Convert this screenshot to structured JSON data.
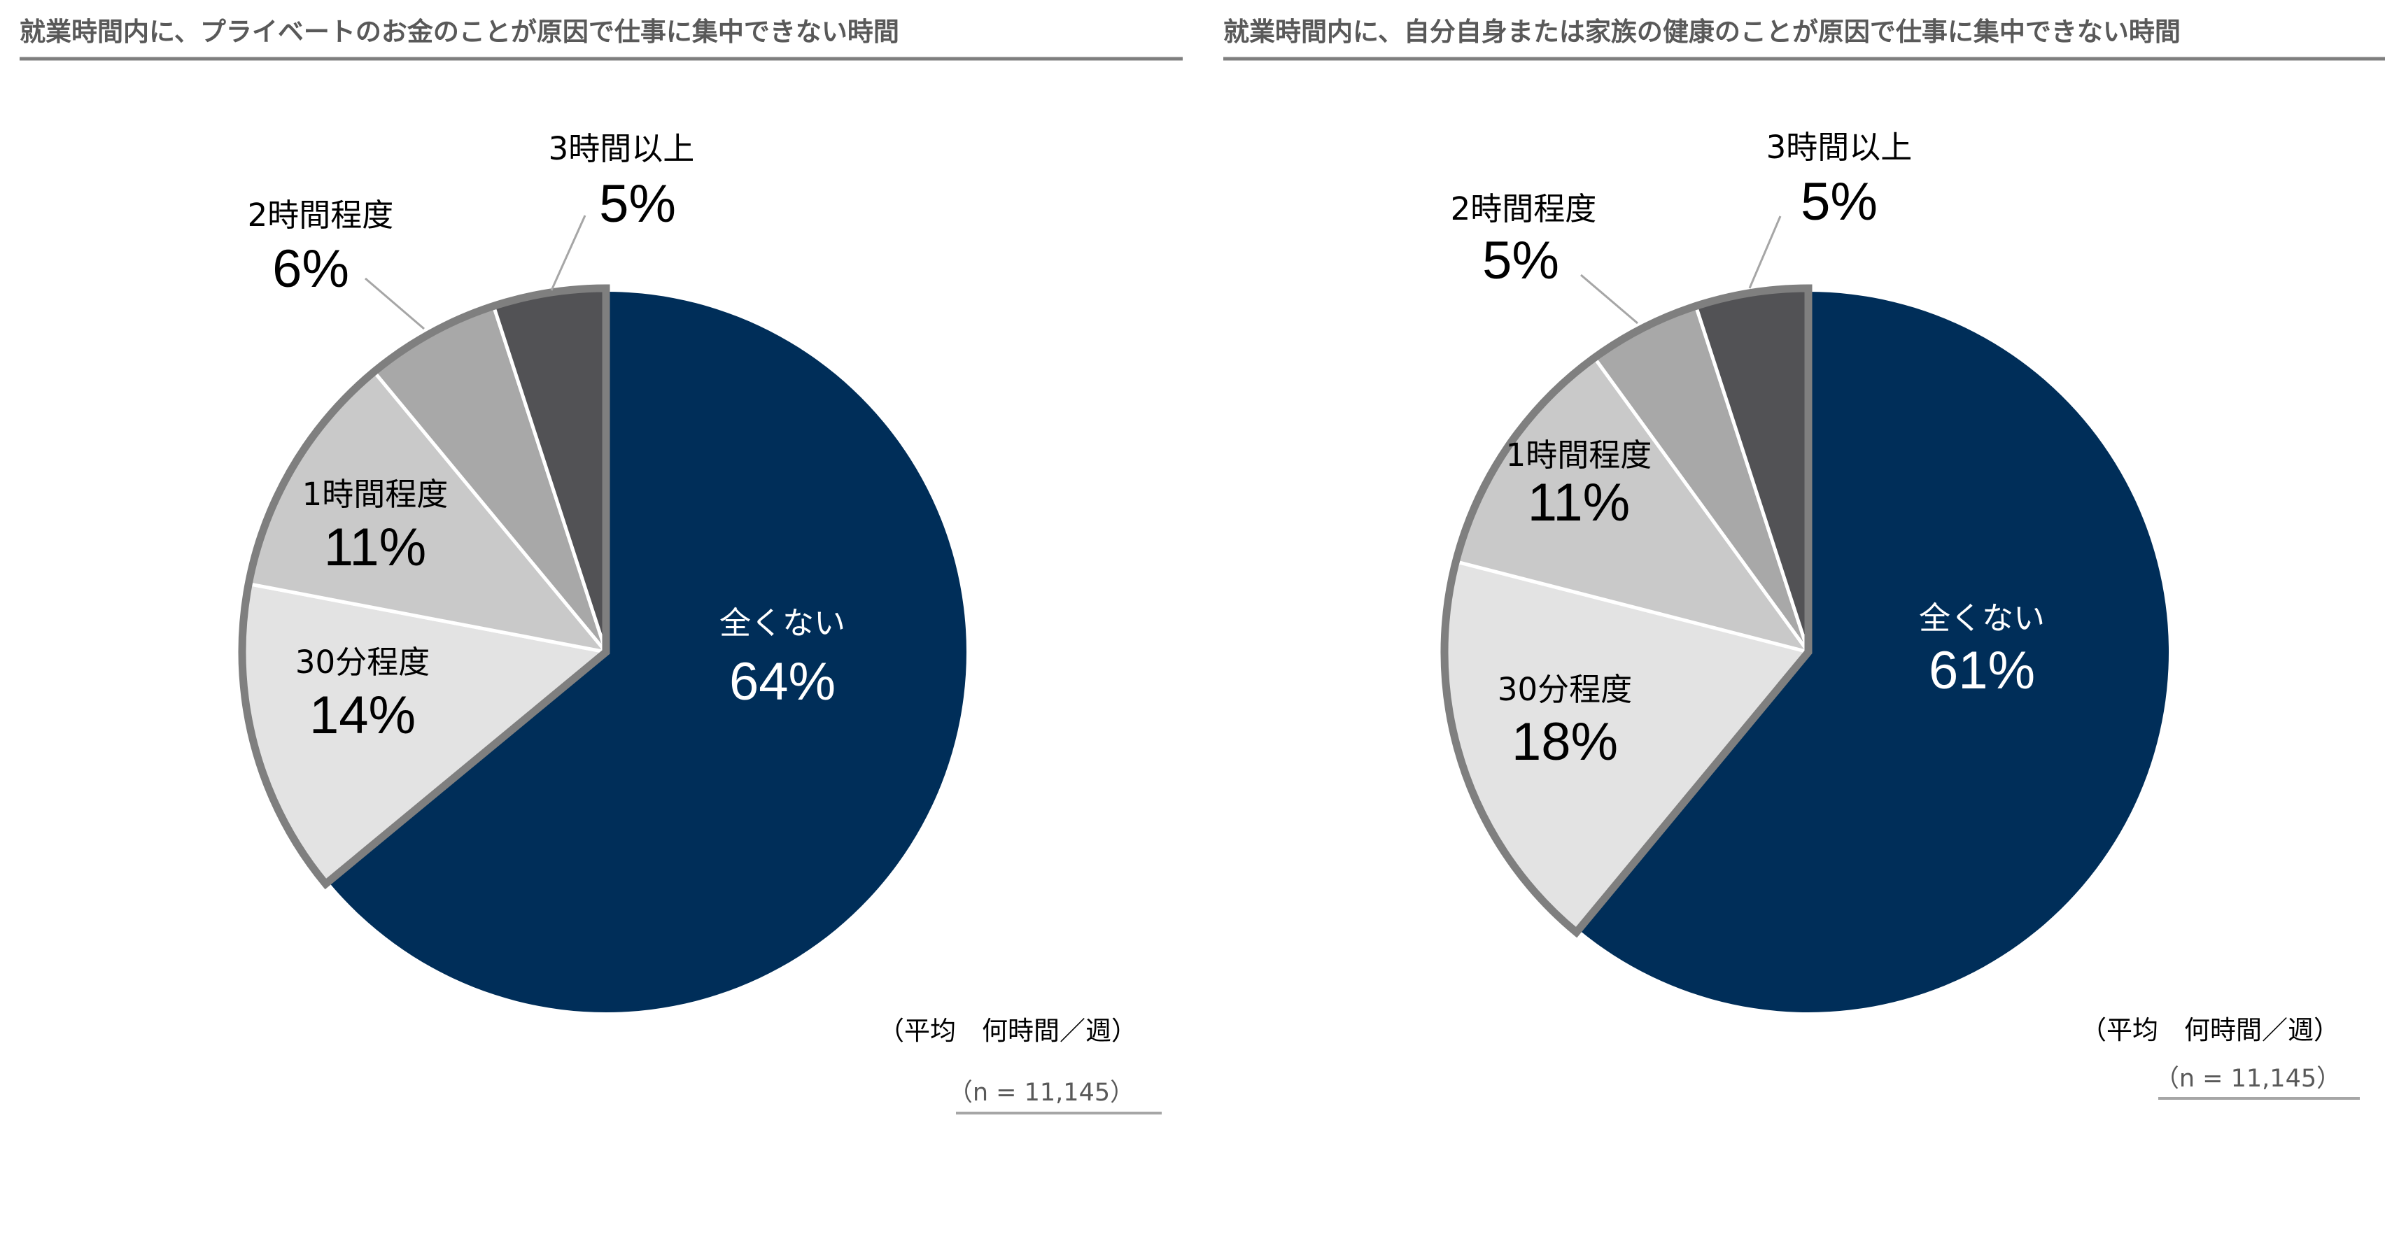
{
  "chart_data": [
    {
      "type": "pie",
      "title": "就業時間内に、プライベートのお金のことが原因で仕事に集中できない時間",
      "categories": [
        "全くない",
        "30分程度",
        "1時間程度",
        "2時間程度",
        "3時間以上"
      ],
      "values": [
        64,
        14,
        11,
        6,
        5
      ],
      "value_labels": [
        "64%",
        "14%",
        "11%",
        "6%",
        "5%"
      ],
      "colors": [
        "#002E59",
        "#E3E3E3",
        "#C9C9C9",
        "#A8A8A8",
        "#525255"
      ],
      "unit_note": "（平均　何時間／週）",
      "sample_note": "（n = 11,145）"
    },
    {
      "type": "pie",
      "title": "就業時間内に、自分自身または家族の健康のことが原因で仕事に集中できない時間",
      "categories": [
        "全くない",
        "30分程度",
        "1時間程度",
        "2時間程度",
        "3時間以上"
      ],
      "values": [
        61,
        18,
        11,
        5,
        5
      ],
      "value_labels": [
        "61%",
        "18%",
        "11%",
        "5%",
        "5%"
      ],
      "colors": [
        "#002E59",
        "#E3E3E3",
        "#C9C9C9",
        "#A8A8A8",
        "#525255"
      ],
      "unit_note": "（平均　何時間／週）",
      "sample_note": "（n = 11,145）"
    }
  ]
}
